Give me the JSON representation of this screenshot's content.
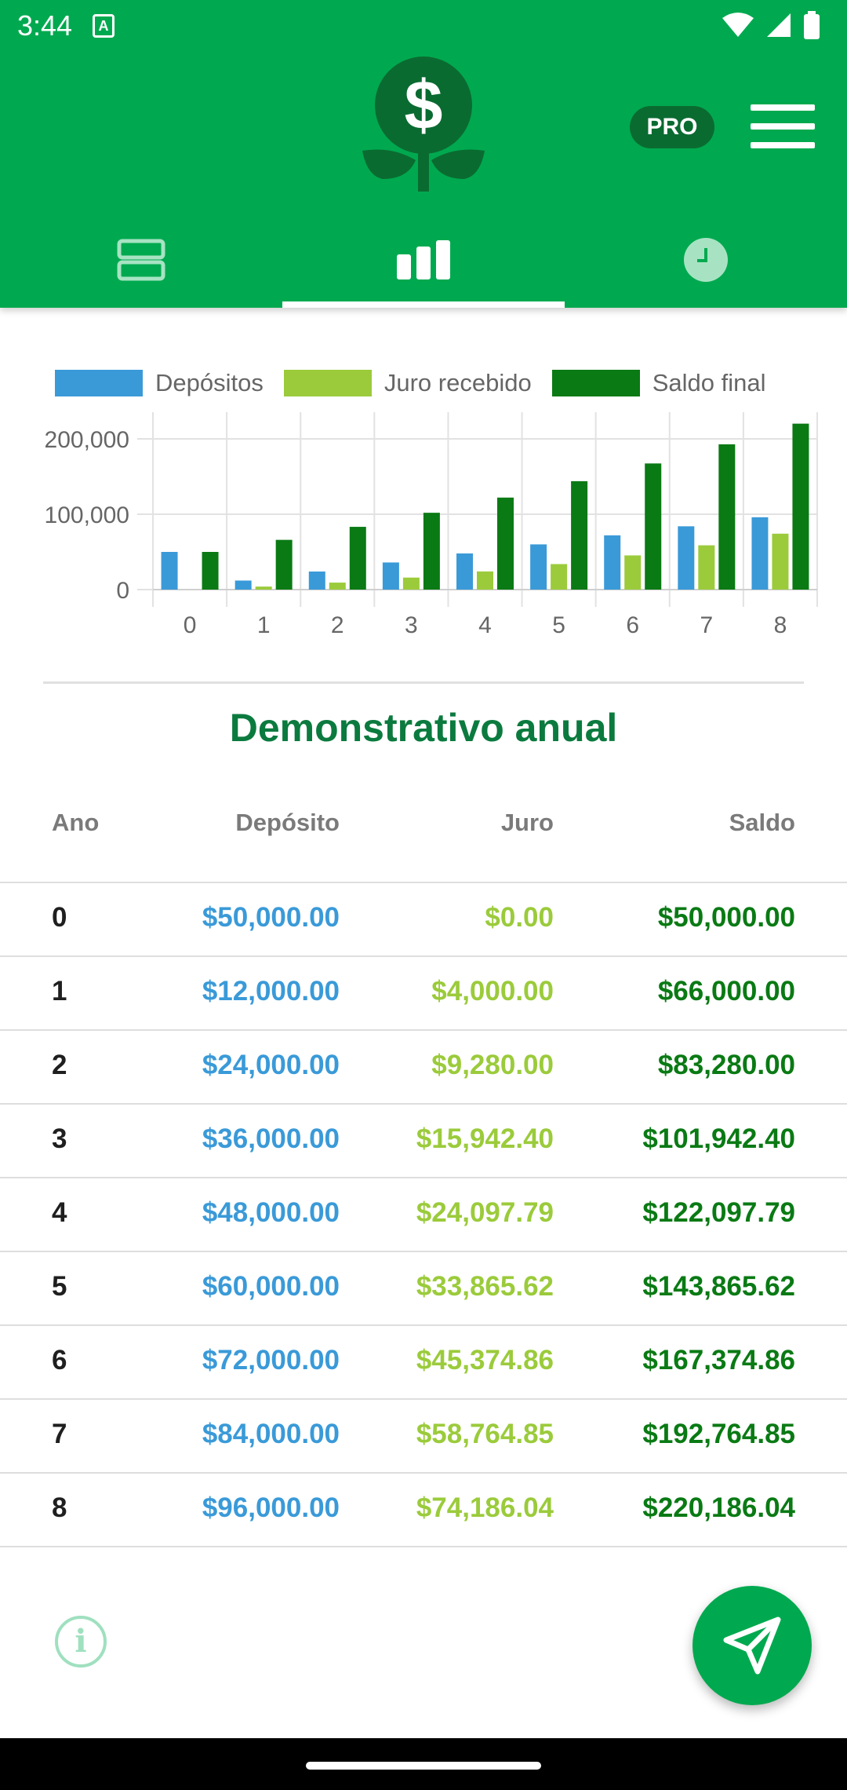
{
  "status": {
    "time": "3:44",
    "notification_icon": "text-notification-icon",
    "icons": [
      "wifi-icon",
      "signal-icon",
      "battery-icon"
    ]
  },
  "header": {
    "logo_icon": "dollar-plant-icon",
    "pro_label": "PRO",
    "menu_icon": "hamburger-menu-icon",
    "tabs": [
      {
        "name": "form",
        "icon": "rows-icon",
        "active": false
      },
      {
        "name": "chart",
        "icon": "bar-chart-icon",
        "active": true
      },
      {
        "name": "history",
        "icon": "clock-icon",
        "active": false
      }
    ],
    "colors": {
      "primary": "#00a94f",
      "dark": "#0a6b31"
    }
  },
  "chart_data": {
    "type": "bar",
    "title": "",
    "xlabel": "",
    "ylabel": "",
    "categories": [
      "0",
      "1",
      "2",
      "3",
      "4",
      "5",
      "6",
      "7",
      "8"
    ],
    "series": [
      {
        "name": "Depósitos",
        "color": "#3a9ad8",
        "values": [
          50000,
          12000,
          24000,
          36000,
          48000,
          60000,
          72000,
          84000,
          96000
        ]
      },
      {
        "name": "Juro recebido",
        "color": "#9bcb3b",
        "values": [
          0,
          4000,
          9280,
          15942.4,
          24097.79,
          33865.62,
          45374.86,
          58764.85,
          74186.04
        ]
      },
      {
        "name": "Saldo final",
        "color": "#0a7a14",
        "values": [
          50000,
          66000,
          83280,
          101942.4,
          122097.79,
          143865.62,
          167374.86,
          192764.85,
          220186.04
        ]
      }
    ],
    "y_ticks": [
      "0",
      "100,000",
      "200,000"
    ],
    "y_tick_values": [
      0,
      100000,
      200000
    ],
    "ylim": [
      0,
      225000
    ],
    "grid": true,
    "legend_position": "top"
  },
  "section_title": "Demonstrativo anual",
  "table": {
    "headers": {
      "year": "Ano",
      "deposit": "Depósito",
      "interest": "Juro",
      "balance": "Saldo"
    },
    "rows": [
      {
        "year": "0",
        "deposit": "$50,000.00",
        "interest": "$0.00",
        "balance": "$50,000.00"
      },
      {
        "year": "1",
        "deposit": "$12,000.00",
        "interest": "$4,000.00",
        "balance": "$66,000.00"
      },
      {
        "year": "2",
        "deposit": "$24,000.00",
        "interest": "$9,280.00",
        "balance": "$83,280.00"
      },
      {
        "year": "3",
        "deposit": "$36,000.00",
        "interest": "$15,942.40",
        "balance": "$101,942.40"
      },
      {
        "year": "4",
        "deposit": "$48,000.00",
        "interest": "$24,097.79",
        "balance": "$122,097.79"
      },
      {
        "year": "5",
        "deposit": "$60,000.00",
        "interest": "$33,865.62",
        "balance": "$143,865.62"
      },
      {
        "year": "6",
        "deposit": "$72,000.00",
        "interest": "$45,374.86",
        "balance": "$167,374.86"
      },
      {
        "year": "7",
        "deposit": "$84,000.00",
        "interest": "$58,764.85",
        "balance": "$192,764.85"
      },
      {
        "year": "8",
        "deposit": "$96,000.00",
        "interest": "$74,186.04",
        "balance": "$220,186.04"
      }
    ]
  },
  "footer": {
    "info_icon": "info-icon",
    "info_glyph": "i",
    "fab_icon": "send-icon"
  }
}
